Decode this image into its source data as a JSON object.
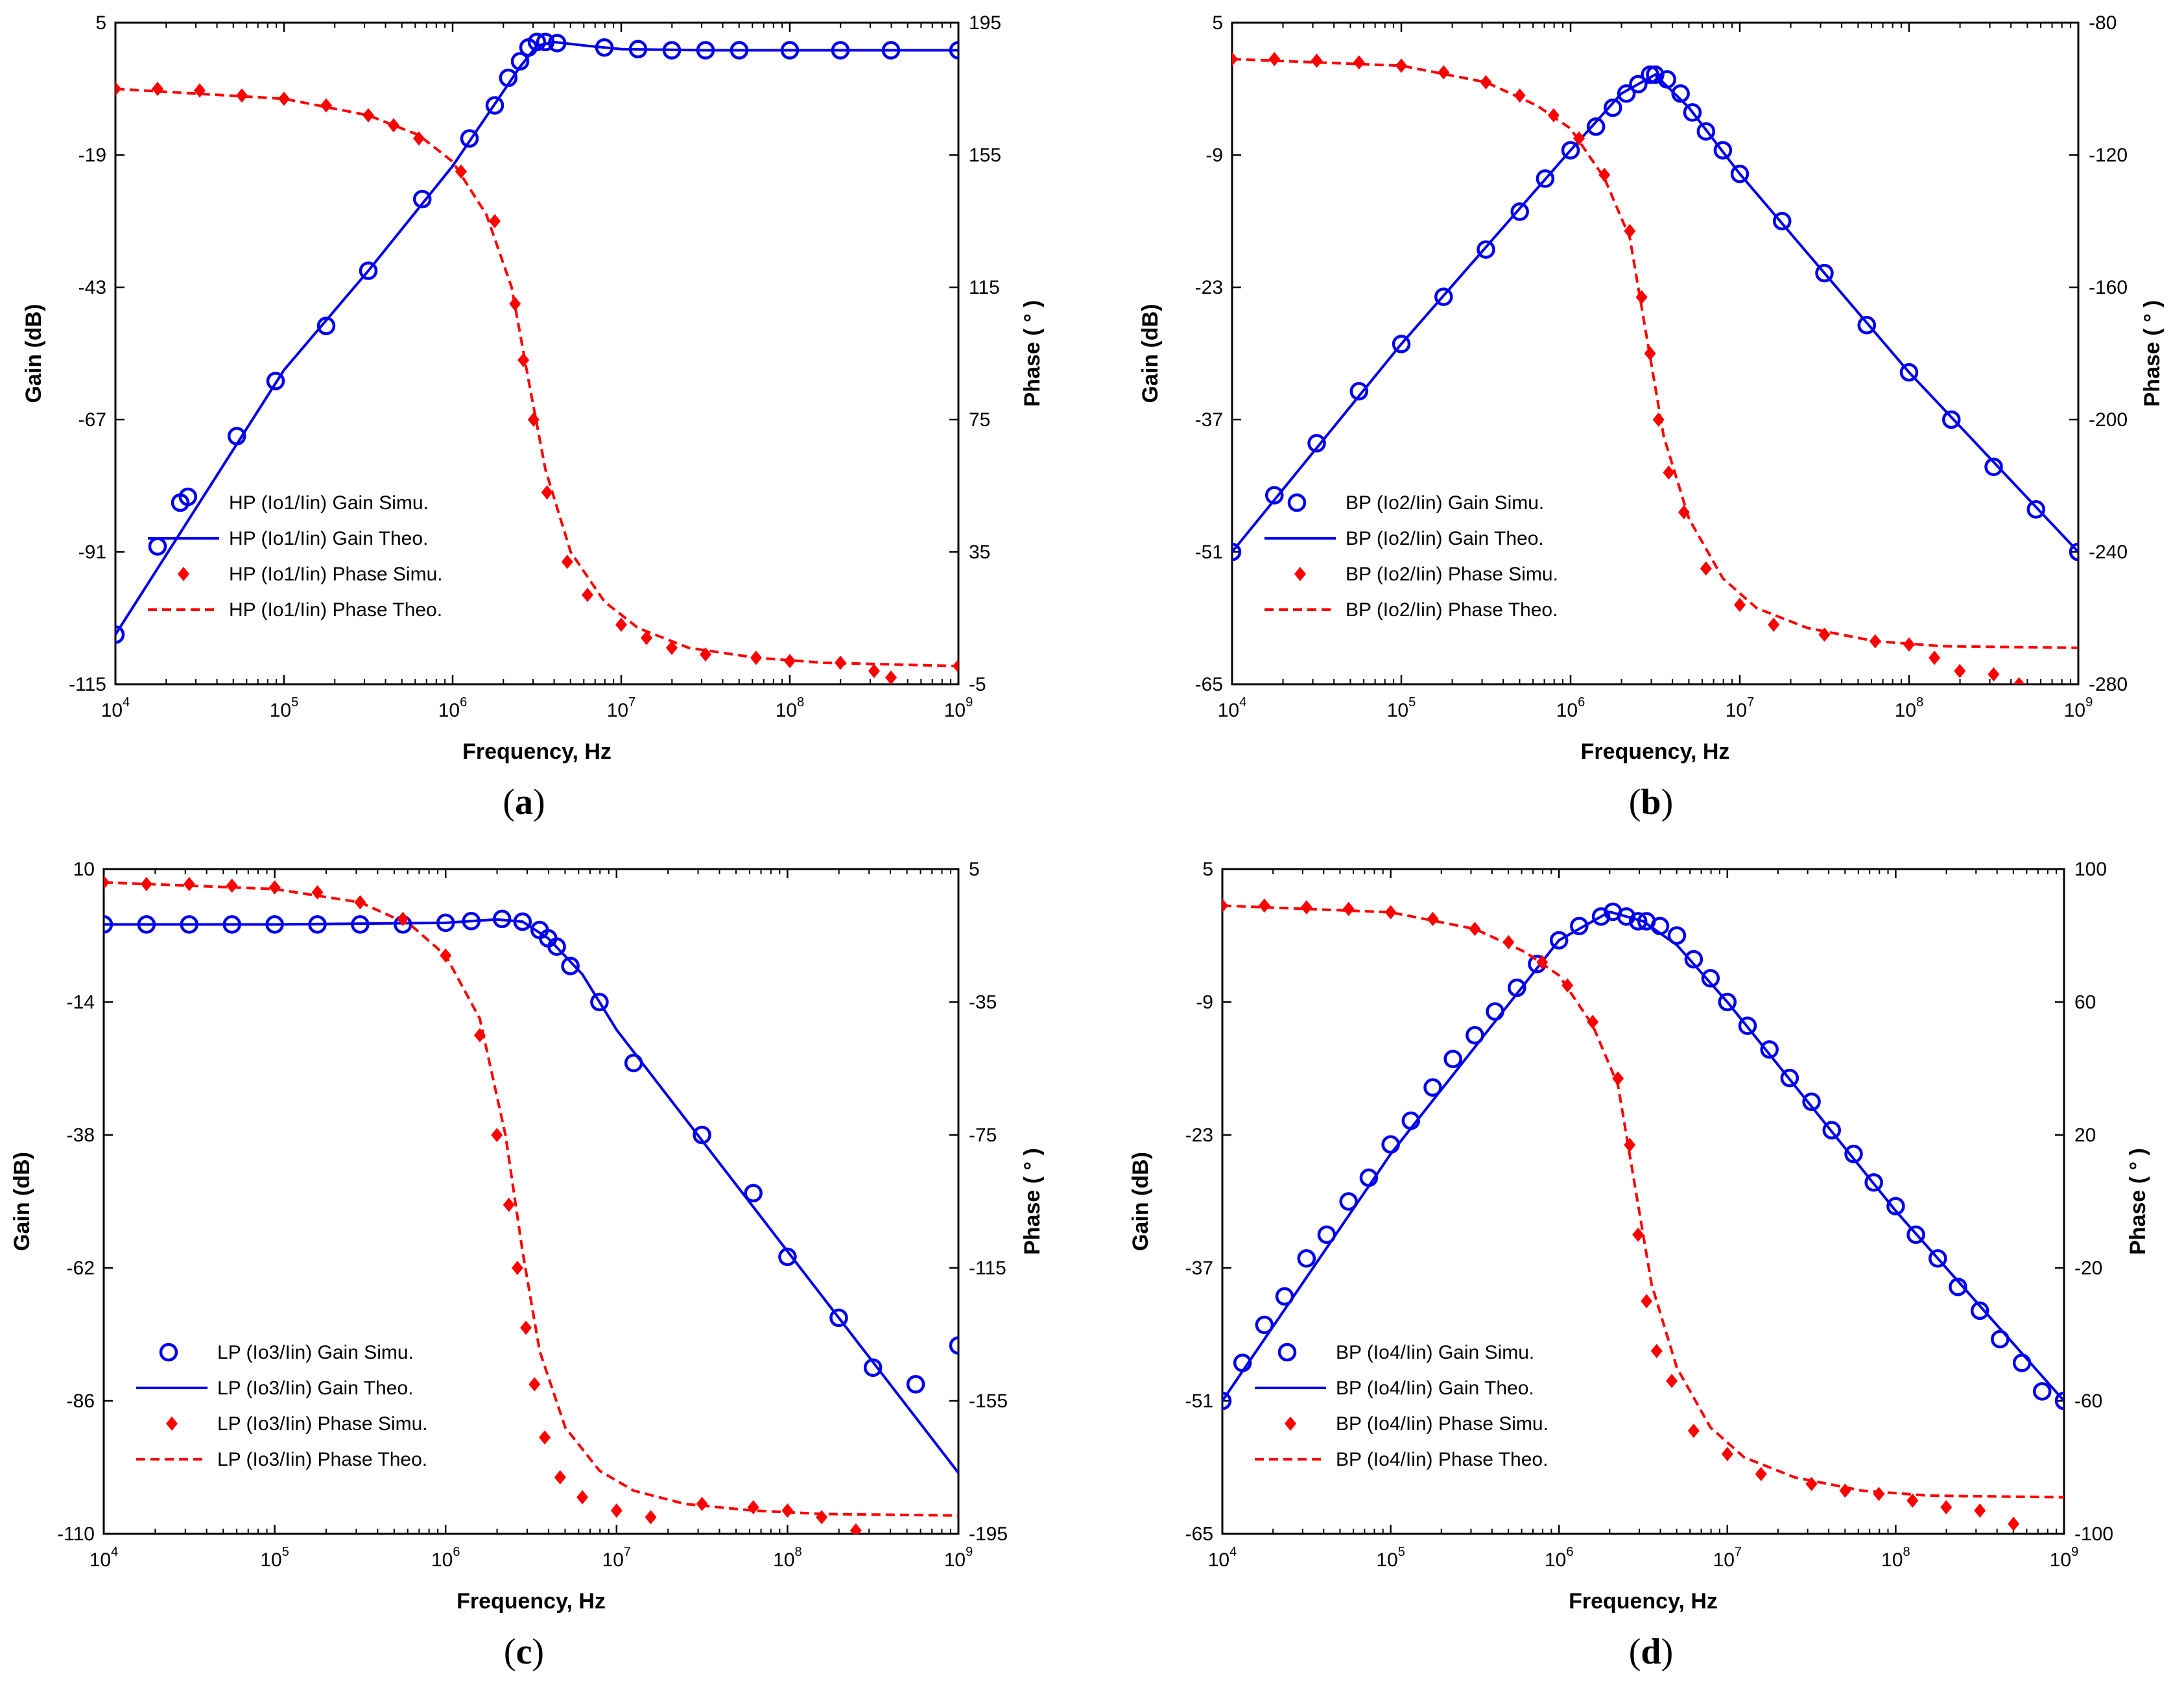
{
  "chart_data": [
    {
      "type": "line",
      "caption_letter": "a",
      "xlabel": "Frequency, Hz",
      "ylabel": "Gain (dB)",
      "y2label": "Phase ( ° )",
      "xlim_log10": [
        4,
        9
      ],
      "xtick_base": "10",
      "xtick_exponents": [
        "4",
        "5",
        "6",
        "7",
        "8",
        "9"
      ],
      "ylim": [
        -115,
        5
      ],
      "yticks": [
        -115,
        -91,
        -67,
        -43,
        -19,
        5
      ],
      "y2lim": [
        -5,
        195
      ],
      "y2ticks": [
        -5,
        35,
        75,
        115,
        155,
        195
      ],
      "series": [
        {
          "name": "HP (Io1/Iin) Gain Simu.",
          "axis": "left",
          "style": "circle",
          "x_log10": [
            4.0,
            4.25,
            4.43,
            4.72,
            4.95,
            5.25,
            5.5,
            5.82,
            6.1,
            6.25,
            6.33,
            6.4,
            6.45,
            6.5,
            6.55,
            6.62,
            6.9,
            7.1,
            7.3,
            7.5,
            7.7,
            8.0,
            8.3,
            8.6,
            9.0
          ],
          "values": [
            -106.0,
            -90.0,
            -81.0,
            -70.0,
            -60.0,
            -50.0,
            -40.0,
            -27.0,
            -16.0,
            -10.0,
            -5.0,
            -2.0,
            0.5,
            1.5,
            1.5,
            1.3,
            0.5,
            0.2,
            0.0,
            0.0,
            0.0,
            0.0,
            0.0,
            0.0,
            0.0
          ]
        },
        {
          "name": "HP (Io1/Iin) Gain Theo.",
          "axis": "left",
          "style": "line",
          "x_log10": [
            4.0,
            5.0,
            5.5,
            6.0,
            6.2,
            6.4,
            6.5,
            6.6,
            6.8,
            7.0,
            7.5,
            8.0,
            9.0
          ],
          "values": [
            -106.0,
            -58.0,
            -40.0,
            -21.0,
            -12.0,
            -3.0,
            0.8,
            1.5,
            0.8,
            0.2,
            0.0,
            0.0,
            0.0
          ]
        },
        {
          "name": "HP (Io1/Iin) Phase Simu.",
          "axis": "right",
          "style": "diamond",
          "x_log10": [
            4.0,
            4.25,
            4.5,
            4.75,
            5.0,
            5.25,
            5.5,
            5.65,
            5.8,
            6.05,
            6.25,
            6.37,
            6.42,
            6.48,
            6.56,
            6.68,
            6.8,
            7.0,
            7.15,
            7.3,
            7.5,
            7.8,
            8.0,
            8.3,
            8.5,
            8.6,
            9.0
          ],
          "values": [
            175.0,
            175.0,
            174.5,
            173.0,
            172.0,
            170.0,
            167.0,
            164.0,
            160.0,
            150.0,
            135.0,
            110.0,
            93.0,
            75.0,
            53.0,
            32.0,
            22.0,
            13.0,
            9.0,
            6.0,
            4.0,
            3.0,
            2.0,
            1.5,
            -1.0,
            -3.0,
            0.5
          ]
        },
        {
          "name": "HP (Io1/Iin) Phase Theo.",
          "axis": "right",
          "style": "dashed",
          "x_log10": [
            4.0,
            5.0,
            5.5,
            5.8,
            6.0,
            6.2,
            6.35,
            6.45,
            6.55,
            6.7,
            6.9,
            7.1,
            7.4,
            7.8,
            8.2,
            9.0
          ],
          "values": [
            175.0,
            172.0,
            167.0,
            161.0,
            153.0,
            137.0,
            115.0,
            87.0,
            60.0,
            35.0,
            20.0,
            12.0,
            6.0,
            3.0,
            1.5,
            0.5
          ]
        }
      ],
      "legend": [
        "HP (Io1/Iin) Gain Simu.",
        "HP (Io1/Iin) Gain Theo.",
        "HP (Io1/Iin) Phase Simu.",
        "HP (Io1/Iin) Phase Theo."
      ],
      "legend_position": "lower-left"
    },
    {
      "type": "line",
      "caption_letter": "b",
      "xlabel": "Frequency, Hz",
      "ylabel": "Gain (dB)",
      "y2label": "Phase ( ° )",
      "xlim_log10": [
        4,
        9
      ],
      "xtick_base": "10",
      "xtick_exponents": [
        "4",
        "5",
        "6",
        "7",
        "8",
        "9"
      ],
      "ylim": [
        -65,
        5
      ],
      "yticks": [
        -65,
        -51,
        -37,
        -23,
        -9,
        5
      ],
      "y2lim": [
        -280,
        -80
      ],
      "y2ticks": [
        -280,
        -240,
        -200,
        -160,
        -120,
        -80
      ],
      "series": [
        {
          "name": "BP (Io2/Iin) Gain Simu.",
          "axis": "left",
          "style": "circle",
          "x_log10": [
            4.0,
            4.25,
            4.5,
            4.75,
            5.0,
            5.25,
            5.5,
            5.7,
            5.85,
            6.0,
            6.15,
            6.25,
            6.33,
            6.4,
            6.47,
            6.5,
            6.57,
            6.65,
            6.72,
            6.8,
            6.9,
            7.0,
            7.25,
            7.5,
            7.75,
            8.0,
            8.25,
            8.5,
            8.75,
            9.0
          ],
          "values": [
            -51.0,
            -45.0,
            -39.5,
            -34.0,
            -29.0,
            -24.0,
            -19.0,
            -15.0,
            -11.5,
            -8.5,
            -6.0,
            -4.0,
            -2.5,
            -1.5,
            -0.5,
            -0.5,
            -1.0,
            -2.5,
            -4.5,
            -6.5,
            -8.5,
            -11.0,
            -16.0,
            -21.5,
            -27.0,
            -32.0,
            -37.0,
            -42.0,
            -46.5,
            -51.0
          ]
        },
        {
          "name": "BP (Io2/Iin) Gain Theo.",
          "axis": "left",
          "style": "line",
          "x_log10": [
            4.0,
            5.0,
            6.0,
            6.3,
            6.5,
            6.7,
            7.0,
            8.0,
            9.0
          ],
          "values": [
            -51.0,
            -29.0,
            -8.5,
            -2.5,
            -0.5,
            -4.0,
            -11.0,
            -32.0,
            -51.0
          ]
        },
        {
          "name": "BP (Io2/Iin) Phase Simu.",
          "axis": "right",
          "style": "diamond",
          "x_log10": [
            4.0,
            4.25,
            4.5,
            4.75,
            5.0,
            5.25,
            5.5,
            5.7,
            5.9,
            6.05,
            6.2,
            6.35,
            6.42,
            6.47,
            6.52,
            6.58,
            6.67,
            6.8,
            7.0,
            7.2,
            7.5,
            7.8,
            8.0,
            8.15,
            8.3,
            8.5,
            8.65
          ],
          "values": [
            -91.0,
            -91.0,
            -91.5,
            -92.0,
            -93.0,
            -95.0,
            -98.0,
            -102.0,
            -108.0,
            -115.0,
            -126.0,
            -143.0,
            -163.0,
            -180.0,
            -200.0,
            -216.0,
            -228.0,
            -245.0,
            -256.0,
            -262.0,
            -265.0,
            -267.0,
            -268.0,
            -272.0,
            -276.0,
            -277.0,
            -280.0
          ]
        },
        {
          "name": "BP (Io2/Iin) Phase Theo.",
          "axis": "right",
          "style": "dashed",
          "x_log10": [
            4.0,
            5.0,
            5.5,
            5.8,
            6.0,
            6.2,
            6.35,
            6.45,
            6.55,
            6.7,
            6.9,
            7.1,
            7.4,
            7.8,
            8.2,
            9.0
          ],
          "values": [
            -91.0,
            -93.0,
            -98.0,
            -105.0,
            -112.0,
            -127.0,
            -145.0,
            -175.0,
            -205.0,
            -230.0,
            -248.0,
            -257.0,
            -263.0,
            -267.0,
            -268.5,
            -269.0
          ]
        }
      ],
      "legend": [
        "BP (Io2/Iin) Gain Simu.",
        "BP (Io2/Iin) Gain Theo.",
        "BP (Io2/Iin) Phase Simu.",
        "BP (Io2/Iin) Phase Theo."
      ],
      "legend_position": "lower-left"
    },
    {
      "type": "line",
      "caption_letter": "c",
      "xlabel": "Frequency, Hz",
      "ylabel": "Gain (dB)",
      "y2label": "Phase ( ° )",
      "xlim_log10": [
        4,
        9
      ],
      "xtick_base": "10",
      "xtick_exponents": [
        "4",
        "5",
        "6",
        "7",
        "8",
        "9"
      ],
      "ylim": [
        -110,
        10
      ],
      "yticks": [
        -110,
        -86,
        -62,
        -38,
        -14,
        10
      ],
      "y2lim": [
        -195,
        5
      ],
      "y2ticks": [
        -195,
        -155,
        -115,
        -75,
        -35,
        5
      ],
      "series": [
        {
          "name": "LP (Io3/Iin) Gain Simu.",
          "axis": "left",
          "style": "circle",
          "x_log10": [
            4.0,
            4.25,
            4.5,
            4.75,
            5.0,
            5.25,
            5.5,
            5.75,
            6.0,
            6.15,
            6.33,
            6.45,
            6.55,
            6.6,
            6.65,
            6.73,
            6.9,
            7.1,
            7.5,
            7.8,
            8.0,
            8.3,
            8.5,
            8.75,
            9.0
          ],
          "values": [
            0.0,
            0.0,
            0.0,
            0.0,
            0.0,
            0.0,
            0.0,
            0.0,
            0.3,
            0.6,
            1.0,
            0.5,
            -1.0,
            -2.5,
            -4.0,
            -7.5,
            -14.0,
            -25.0,
            -38.0,
            -48.5,
            -60.0,
            -71.0,
            -80.0,
            -83.0,
            -76.0
          ]
        },
        {
          "name": "LP (Io3/Iin) Gain Theo.",
          "axis": "left",
          "style": "line",
          "x_log10": [
            4.0,
            5.0,
            6.0,
            6.3,
            6.45,
            6.6,
            6.8,
            7.0,
            7.5,
            8.0,
            8.5,
            9.0
          ],
          "values": [
            0.0,
            0.0,
            0.3,
            0.9,
            0.5,
            -2.5,
            -9.0,
            -19.0,
            -39.0,
            -59.0,
            -79.0,
            -99.0
          ]
        },
        {
          "name": "LP (Io3/Iin) Phase Simu.",
          "axis": "right",
          "style": "diamond",
          "x_log10": [
            4.0,
            4.25,
            4.5,
            4.75,
            5.0,
            5.25,
            5.5,
            5.75,
            6.0,
            6.2,
            6.3,
            6.37,
            6.42,
            6.47,
            6.52,
            6.58,
            6.67,
            6.8,
            7.0,
            7.2,
            7.5,
            7.8,
            8.0,
            8.2,
            8.4
          ],
          "values": [
            1.0,
            0.5,
            0.5,
            0.0,
            -0.5,
            -2.0,
            -5.0,
            -10.0,
            -21.0,
            -45.0,
            -75.0,
            -96.0,
            -115.0,
            -133.0,
            -150.0,
            -166.0,
            -178.0,
            -184.0,
            -188.0,
            -190.0,
            -186.0,
            -187.0,
            -188.0,
            -190.0,
            -194.0
          ]
        },
        {
          "name": "LP (Io3/Iin) Phase Theo.",
          "axis": "right",
          "style": "dashed",
          "x_log10": [
            4.0,
            5.0,
            5.5,
            5.8,
            6.0,
            6.2,
            6.35,
            6.45,
            6.55,
            6.7,
            6.9,
            7.1,
            7.4,
            7.8,
            8.2,
            9.0
          ],
          "values": [
            1.0,
            -1.0,
            -5.0,
            -12.0,
            -21.0,
            -40.0,
            -75.0,
            -110.0,
            -140.0,
            -163.0,
            -176.0,
            -182.0,
            -186.0,
            -188.0,
            -189.0,
            -189.5
          ]
        }
      ],
      "legend": [
        "LP (Io3/Iin) Gain Simu.",
        "LP (Io3/Iin) Gain Theo.",
        "LP (Io3/Iin) Phase Simu.",
        "LP (Io3/Iin) Phase Theo."
      ],
      "legend_position": "lower-left"
    },
    {
      "type": "line",
      "caption_letter": "d",
      "xlabel": "Frequency, Hz",
      "ylabel": "Gain (dB)",
      "y2label": "Phase ( ° )",
      "xlim_log10": [
        4,
        9
      ],
      "xtick_base": "10",
      "xtick_exponents": [
        "4",
        "5",
        "6",
        "7",
        "8",
        "9"
      ],
      "ylim": [
        -65,
        5
      ],
      "yticks": [
        -65,
        -51,
        -37,
        -23,
        -9,
        5
      ],
      "y2lim": [
        -100,
        100
      ],
      "y2ticks": [
        -100,
        -60,
        -20,
        20,
        60,
        100
      ],
      "series": [
        {
          "name": "BP (Io4/Iin) Gain Simu.",
          "axis": "left",
          "style": "circle",
          "x_log10": [
            4.0,
            4.12,
            4.25,
            4.37,
            4.5,
            4.62,
            4.75,
            4.87,
            5.0,
            5.12,
            5.25,
            5.37,
            5.5,
            5.62,
            5.75,
            5.87,
            6.0,
            6.12,
            6.25,
            6.32,
            6.4,
            6.47,
            6.52,
            6.6,
            6.7,
            6.8,
            6.9,
            7.0,
            7.12,
            7.25,
            7.37,
            7.5,
            7.62,
            7.75,
            7.87,
            8.0,
            8.12,
            8.25,
            8.37,
            8.5,
            8.62,
            8.75,
            8.87,
            9.0
          ],
          "values": [
            -51.0,
            -47.0,
            -43.0,
            -40.0,
            -36.0,
            -33.5,
            -30.0,
            -27.5,
            -24.0,
            -21.5,
            -18.0,
            -15.0,
            -12.5,
            -10.0,
            -7.5,
            -5.0,
            -2.5,
            -1.0,
            0.0,
            0.5,
            0.0,
            -0.5,
            -0.5,
            -1.0,
            -2.0,
            -4.5,
            -6.5,
            -9.0,
            -11.5,
            -14.0,
            -17.0,
            -19.5,
            -22.5,
            -25.0,
            -28.0,
            -30.5,
            -33.5,
            -36.0,
            -39.0,
            -41.5,
            -44.5,
            -47.0,
            -50.0,
            -51.0
          ]
        },
        {
          "name": "BP (Io4/Iin) Gain Theo.",
          "axis": "left",
          "style": "line",
          "x_log10": [
            4.0,
            5.0,
            6.0,
            6.3,
            6.5,
            6.7,
            7.0,
            8.0,
            9.0
          ],
          "values": [
            -51.0,
            -25.0,
            -2.5,
            0.5,
            -0.5,
            -3.0,
            -9.0,
            -31.0,
            -51.0
          ]
        },
        {
          "name": "BP (Io4/Iin) Phase Simu.",
          "axis": "right",
          "style": "diamond",
          "x_log10": [
            4.0,
            4.25,
            4.5,
            4.75,
            5.0,
            5.25,
            5.5,
            5.7,
            5.9,
            6.05,
            6.2,
            6.35,
            6.42,
            6.47,
            6.52,
            6.58,
            6.67,
            6.8,
            7.0,
            7.2,
            7.5,
            7.7,
            7.9,
            8.1,
            8.3,
            8.5,
            8.7
          ],
          "values": [
            89.0,
            89.0,
            88.5,
            88.0,
            87.0,
            85.0,
            82.0,
            78.0,
            72.0,
            65.0,
            54.0,
            37.0,
            17.0,
            -10.0,
            -30.0,
            -45.0,
            -54.0,
            -69.0,
            -76.0,
            -82.0,
            -85.0,
            -87.0,
            -88.0,
            -90.0,
            -92.0,
            -93.0,
            -97.0
          ]
        },
        {
          "name": "BP (Io4/Iin) Phase Theo.",
          "axis": "right",
          "style": "dashed",
          "x_log10": [
            4.0,
            5.0,
            5.5,
            5.8,
            6.0,
            6.2,
            6.35,
            6.45,
            6.55,
            6.7,
            6.9,
            7.1,
            7.4,
            7.8,
            8.2,
            9.0
          ],
          "values": [
            89.0,
            87.0,
            82.0,
            75.0,
            68.0,
            53.0,
            35.0,
            5.0,
            -25.0,
            -50.0,
            -68.0,
            -77.0,
            -83.0,
            -87.0,
            -88.5,
            -89.0
          ]
        }
      ],
      "legend": [
        "BP (Io4/Iin) Gain Simu.",
        "BP (Io4/Iin) Gain Theo.",
        "BP (Io4/Iin) Phase Simu.",
        "BP (Io4/Iin) Phase Theo."
      ],
      "legend_position": "lower-left"
    }
  ],
  "colors": {
    "gain": "#0000ee",
    "phase": "#ff0000",
    "axis": "#000000"
  }
}
